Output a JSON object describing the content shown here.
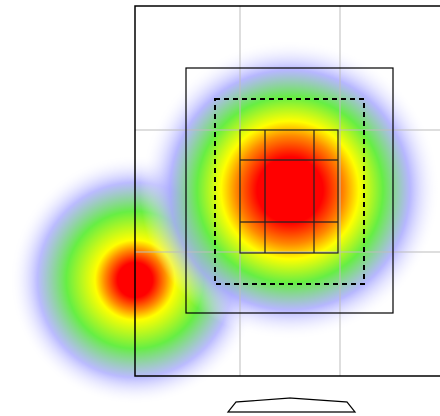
{
  "scene": {
    "view": "screen heatmap",
    "colors": {
      "background": "#ffffff",
      "frame": "#000000",
      "grid": "#bdbdbd",
      "inner_grid": "#222222"
    },
    "heatmap_gradient": [
      "#ff0000",
      "#ff7a00",
      "#ffff00",
      "#44ee44",
      "#aaaaff",
      "#ffffff"
    ],
    "hotspots": [
      {
        "name": "center",
        "intensity": 1.0
      },
      {
        "name": "left",
        "intensity": 1.0
      }
    ],
    "dashed_region": true,
    "icon": "stand-icon"
  }
}
